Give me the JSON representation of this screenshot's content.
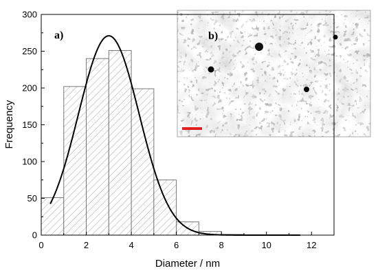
{
  "chart_data": {
    "type": "bar",
    "xlabel": "Diameter / nm",
    "ylabel": "Frequency",
    "xlim": [
      0,
      13
    ],
    "ylim": [
      0,
      300
    ],
    "x_ticks": [
      0,
      2,
      4,
      6,
      8,
      10,
      12
    ],
    "y_ticks": [
      0,
      50,
      100,
      150,
      200,
      250,
      300
    ],
    "bin_width": 1,
    "bins": [
      {
        "start": 0,
        "end": 1,
        "value": 51
      },
      {
        "start": 1,
        "end": 2,
        "value": 202
      },
      {
        "start": 2,
        "end": 3,
        "value": 240
      },
      {
        "start": 3,
        "end": 4,
        "value": 251
      },
      {
        "start": 4,
        "end": 5,
        "value": 199
      },
      {
        "start": 5,
        "end": 6,
        "value": 75
      },
      {
        "start": 6,
        "end": 7,
        "value": 18
      },
      {
        "start": 7,
        "end": 8,
        "value": 5
      },
      {
        "start": 8,
        "end": 9,
        "value": 1
      }
    ],
    "fit_curve": {
      "type": "gaussian",
      "center": 3.0,
      "sigma": 1.35,
      "amplitude": 271,
      "x_range": [
        0.4,
        11.5
      ]
    },
    "grid": false,
    "panel_labels": [
      "a)",
      "b)"
    ]
  },
  "inset": {
    "kind": "tem-micrograph",
    "scale_bar_color": "#e02020"
  }
}
